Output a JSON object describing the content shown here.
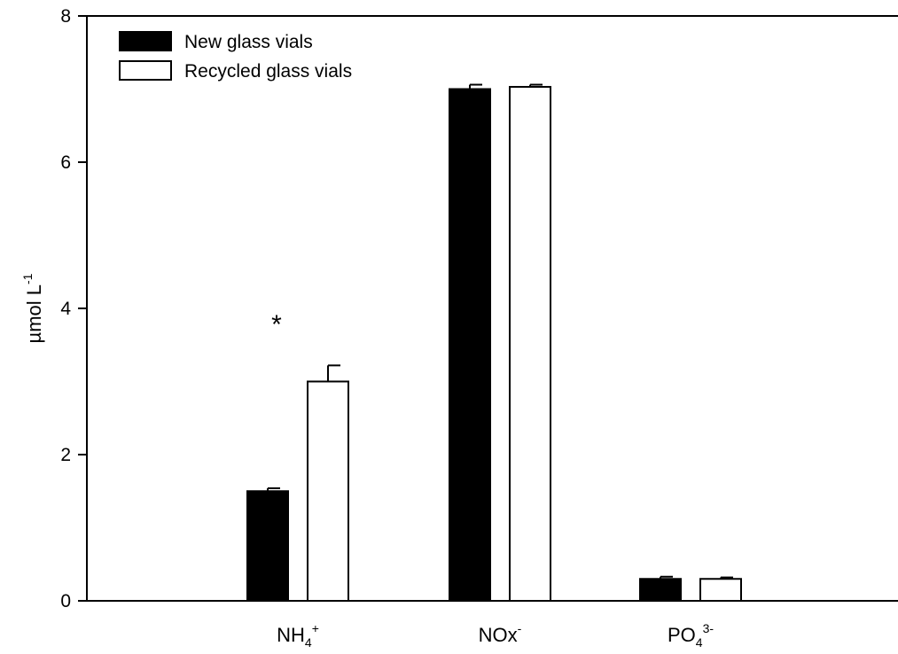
{
  "chart_data": {
    "type": "bar",
    "categories": [
      {
        "base": "NH",
        "sub": "4",
        "sup": "+"
      },
      {
        "base": "NOx",
        "sub": "",
        "sup": "-"
      },
      {
        "base": "PO",
        "sub": "4",
        "sup": "3-"
      }
    ],
    "series": [
      {
        "name": "New glass vials",
        "values": [
          1.5,
          7.0,
          0.3
        ],
        "errors": [
          0.04,
          0.06,
          0.03
        ],
        "fill": "#000000"
      },
      {
        "name": "Recycled glass vials",
        "values": [
          3.0,
          7.03,
          0.3
        ],
        "errors": [
          0.22,
          0.03,
          0.02
        ],
        "fill": "#ffffff"
      }
    ],
    "ylabel": {
      "base": "µmol L",
      "sup": "-1"
    },
    "ylim": [
      0,
      8
    ],
    "yticks": [
      "0",
      "2",
      "4",
      "6",
      "8"
    ],
    "annotations": [
      {
        "text": "*",
        "category_index": 0
      }
    ],
    "legend_position": "top-left",
    "grid": false
  }
}
